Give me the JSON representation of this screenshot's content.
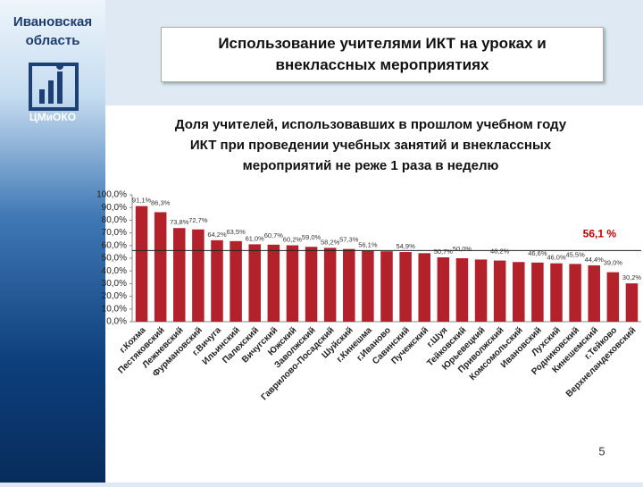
{
  "header": {
    "region": [
      "Ивановская",
      "область"
    ],
    "logo": "ЦМиОКО",
    "slide_title": [
      "Использование учителями ИКТ на уроках и",
      "внеклассных мероприятиях"
    ]
  },
  "page_number": 5,
  "chart_data": {
    "type": "bar",
    "title": [
      "Доля учителей, использовавших в прошлом учебном году",
      "ИКТ при проведении учебных занятий и внеклассных",
      "мероприятий не реже 1 раза в неделю"
    ],
    "categories": [
      "г.Кохма",
      "Пестяковский",
      "Лежневский",
      "Фурмановский",
      "г.Вичуга",
      "Ильинский",
      "Палехский",
      "Вичугский",
      "Южский",
      "Заволжский",
      "Гаврилово-Посадский",
      "Шуйский",
      "г.Кинешма",
      "г.Иваново",
      "Савинский",
      "Пучежский",
      "г.Шуя",
      "Тейковский",
      "Юрьевецкий",
      "Приволжский",
      "Комсомольский",
      "Ивановский",
      "Лухский",
      "Родниковский",
      "Кинешемский",
      "г.Тейково",
      "Верхнеландеховский"
    ],
    "values": [
      91.1,
      86.3,
      73.8,
      72.7,
      64.2,
      63.5,
      61.0,
      60.7,
      60.2,
      59.0,
      58.2,
      57.3,
      56.1,
      55.5,
      54.9,
      54.0,
      50.7,
      50.0,
      49.0,
      48.2,
      47.0,
      46.6,
      46.0,
      45.5,
      44.4,
      39.0,
      30.2
    ],
    "value_labels": [
      "91,1%",
      "86,3%",
      "73,8%",
      "72,7%",
      "64,2%",
      "63,5%",
      "61,0%",
      "60,7%",
      "60,2%",
      "59,0%",
      "58,2%",
      "57,3%",
      "56,1%",
      null,
      "54,9%",
      null,
      "50,7%",
      "50,0%",
      null,
      "48,2%",
      null,
      "46,6%",
      "46,0%",
      "45,5%",
      "44,4%",
      "39,0%",
      "30,2%"
    ],
    "color": "#b3222b",
    "average": 56.1,
    "average_label": "56,1 %",
    "average_color": "#c00000",
    "ylim": [
      0,
      100
    ],
    "yticks": [
      {
        "value": 0,
        "label": "0,0%"
      },
      {
        "value": 10,
        "label": "10,0%"
      },
      {
        "value": 20,
        "label": "20,0%"
      },
      {
        "value": 30,
        "label": "30,0%"
      },
      {
        "value": 40,
        "label": "40,0%"
      },
      {
        "value": 50,
        "label": "50,0%"
      },
      {
        "value": 60,
        "label": "60,0%"
      },
      {
        "value": 70,
        "label": "70,0%"
      },
      {
        "value": 80,
        "label": "80,0%"
      },
      {
        "value": 90,
        "label": "90,0%"
      },
      {
        "value": 100,
        "label": "100,0%"
      }
    ],
    "grid": false
  }
}
